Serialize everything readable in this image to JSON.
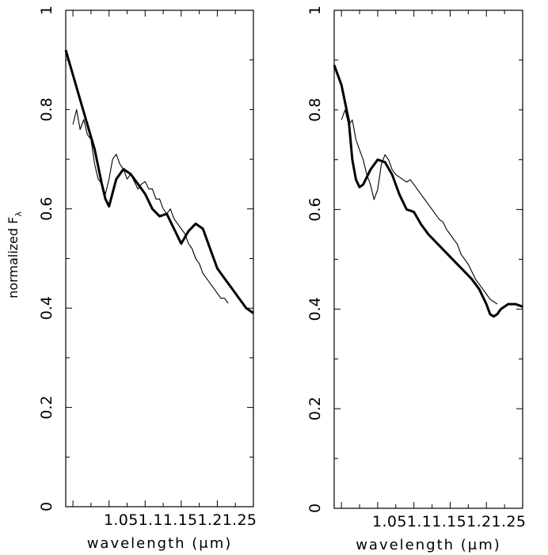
{
  "ylabel_main": "normalized F",
  "ylabel_sub": "λ",
  "chart_data": [
    {
      "type": "line",
      "xlabel": "wavelength (μm)",
      "ylim": [
        0,
        1
      ],
      "xlim": [
        0.99,
        1.25
      ],
      "xticks": [
        "1.05",
        "1.1",
        "1.15",
        "1.2",
        "1.25"
      ],
      "yticks": [
        "0",
        "0.2",
        "0.4",
        "0.6",
        "0.8",
        "1"
      ],
      "series": [
        {
          "style": "thick",
          "x": [
            0.99,
            1.0,
            1.01,
            1.02,
            1.03,
            1.04,
            1.045,
            1.05,
            1.06,
            1.07,
            1.08,
            1.09,
            1.1,
            1.11,
            1.12,
            1.13,
            1.14,
            1.15,
            1.16,
            1.17,
            1.18,
            1.19,
            1.2,
            1.21,
            1.22,
            1.23,
            1.24,
            1.25
          ],
          "y": [
            0.92,
            0.87,
            0.82,
            0.77,
            0.72,
            0.65,
            0.62,
            0.605,
            0.66,
            0.68,
            0.67,
            0.65,
            0.63,
            0.6,
            0.585,
            0.59,
            0.56,
            0.53,
            0.555,
            0.57,
            0.56,
            0.52,
            0.48,
            0.46,
            0.44,
            0.42,
            0.4,
            0.39
          ]
        },
        {
          "style": "thin",
          "x": [
            1.0,
            1.005,
            1.01,
            1.015,
            1.02,
            1.025,
            1.03,
            1.035,
            1.04,
            1.045,
            1.05,
            1.055,
            1.06,
            1.065,
            1.07,
            1.075,
            1.08,
            1.085,
            1.09,
            1.095,
            1.1,
            1.105,
            1.11,
            1.115,
            1.12,
            1.125,
            1.13,
            1.135,
            1.14,
            1.145,
            1.15,
            1.155,
            1.16,
            1.165,
            1.17,
            1.175,
            1.18,
            1.185,
            1.19,
            1.195,
            1.2,
            1.205,
            1.21,
            1.215
          ],
          "y": [
            0.77,
            0.8,
            0.76,
            0.78,
            0.75,
            0.74,
            0.69,
            0.66,
            0.65,
            0.63,
            0.66,
            0.7,
            0.71,
            0.69,
            0.68,
            0.66,
            0.67,
            0.655,
            0.64,
            0.65,
            0.655,
            0.64,
            0.64,
            0.62,
            0.62,
            0.6,
            0.59,
            0.6,
            0.58,
            0.57,
            0.56,
            0.55,
            0.53,
            0.52,
            0.5,
            0.49,
            0.47,
            0.46,
            0.45,
            0.44,
            0.43,
            0.42,
            0.42,
            0.41
          ]
        }
      ]
    },
    {
      "type": "line",
      "xlabel": "wavelength (μm)",
      "ylim": [
        0,
        1
      ],
      "xlim": [
        0.99,
        1.25
      ],
      "xticks": [
        "1.05",
        "1.1",
        "1.15",
        "1.2",
        "1.25"
      ],
      "yticks": [
        "0",
        "0.2",
        "0.4",
        "0.6",
        "0.8",
        "1"
      ],
      "series": [
        {
          "style": "thick",
          "x": [
            0.99,
            1.0,
            1.01,
            1.015,
            1.02,
            1.025,
            1.03,
            1.04,
            1.05,
            1.06,
            1.07,
            1.08,
            1.09,
            1.1,
            1.11,
            1.12,
            1.13,
            1.14,
            1.15,
            1.16,
            1.17,
            1.18,
            1.19,
            1.2,
            1.205,
            1.21,
            1.215,
            1.22,
            1.23,
            1.24,
            1.25
          ],
          "y": [
            0.89,
            0.85,
            0.78,
            0.7,
            0.66,
            0.645,
            0.65,
            0.68,
            0.7,
            0.695,
            0.67,
            0.63,
            0.6,
            0.595,
            0.57,
            0.55,
            0.535,
            0.52,
            0.505,
            0.49,
            0.475,
            0.46,
            0.44,
            0.41,
            0.39,
            0.385,
            0.39,
            0.4,
            0.41,
            0.41,
            0.405
          ]
        },
        {
          "style": "thin",
          "x": [
            1.0,
            1.005,
            1.01,
            1.015,
            1.02,
            1.025,
            1.03,
            1.035,
            1.04,
            1.045,
            1.05,
            1.055,
            1.06,
            1.065,
            1.07,
            1.075,
            1.08,
            1.085,
            1.09,
            1.095,
            1.1,
            1.105,
            1.11,
            1.115,
            1.12,
            1.125,
            1.13,
            1.135,
            1.14,
            1.145,
            1.15,
            1.155,
            1.16,
            1.165,
            1.17,
            1.175,
            1.18,
            1.185,
            1.19,
            1.195,
            1.2,
            1.205,
            1.21,
            1.215
          ],
          "y": [
            0.78,
            0.8,
            0.77,
            0.78,
            0.74,
            0.72,
            0.7,
            0.67,
            0.65,
            0.62,
            0.64,
            0.69,
            0.71,
            0.7,
            0.68,
            0.67,
            0.665,
            0.66,
            0.655,
            0.66,
            0.65,
            0.64,
            0.63,
            0.62,
            0.61,
            0.6,
            0.59,
            0.58,
            0.575,
            0.56,
            0.55,
            0.54,
            0.53,
            0.51,
            0.5,
            0.49,
            0.475,
            0.46,
            0.45,
            0.44,
            0.43,
            0.42,
            0.415,
            0.41
          ]
        }
      ]
    }
  ]
}
